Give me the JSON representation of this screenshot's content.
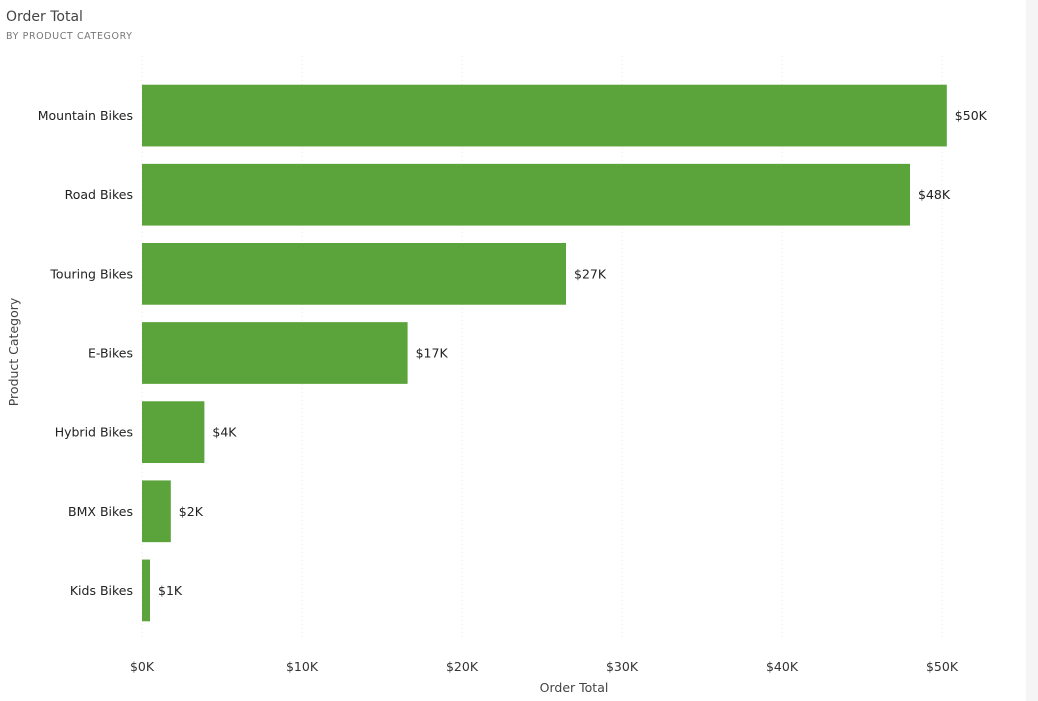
{
  "header": {
    "title": "Order Total",
    "subtitle": "BY PRODUCT CATEGORY"
  },
  "colors": {
    "bar": "#5ba33b",
    "grid": "#e8e8e8"
  },
  "chart_data": {
    "type": "bar",
    "orientation": "horizontal",
    "categories": [
      "Mountain Bikes",
      "Road Bikes",
      "Touring Bikes",
      "E-Bikes",
      "Hybrid Bikes",
      "BMX Bikes",
      "Kids Bikes"
    ],
    "values": [
      50300,
      48000,
      26500,
      16600,
      3900,
      1800,
      500
    ],
    "data_labels": [
      "$50K",
      "$48K",
      "$27K",
      "$17K",
      "$4K",
      "$2K",
      "$1K"
    ],
    "xlabel": "Order Total",
    "ylabel": "Product Category",
    "xlim": [
      0,
      55000
    ],
    "x_ticks": [
      0,
      10000,
      20000,
      30000,
      40000,
      50000
    ],
    "x_tick_labels": [
      "$0K",
      "$10K",
      "$20K",
      "$30K",
      "$40K",
      "$50K"
    ],
    "grid": true,
    "legend": "none"
  }
}
